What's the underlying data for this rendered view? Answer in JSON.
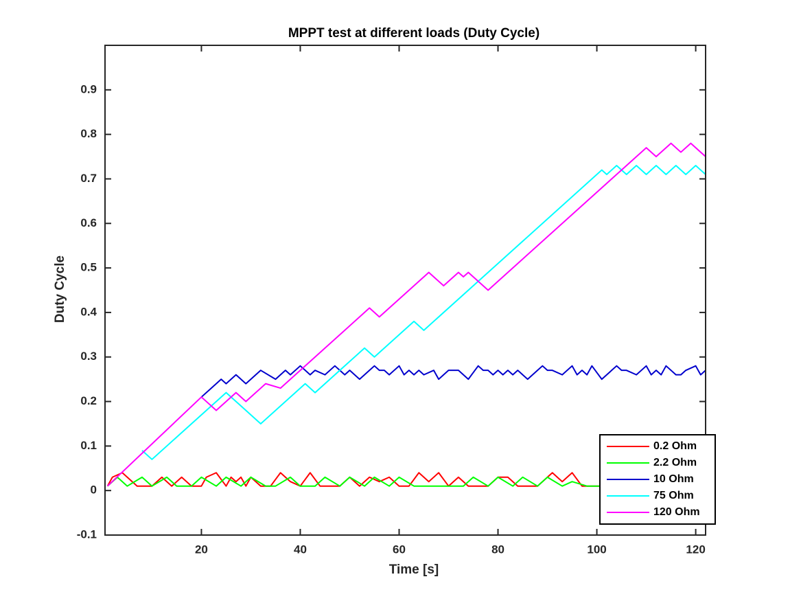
{
  "chart_data": {
    "type": "line",
    "title": "MPPT test at different loads (Duty Cycle)",
    "x_label": "Time [s]",
    "y_label": "Duty Cycle",
    "xlim": [
      0.5,
      122
    ],
    "ylim": [
      -0.1,
      1
    ],
    "xticks": [
      20,
      40,
      60,
      80,
      100,
      120
    ],
    "yticks": [
      -0.1,
      0,
      0.1,
      0.2,
      0.3,
      0.4,
      0.5,
      0.6,
      0.7,
      0.8,
      0.9
    ],
    "grid": false,
    "legend": "southeast",
    "series": [
      {
        "name": "0.2 Ohm",
        "color": "#ff0000",
        "x": [
          1,
          2,
          4,
          7,
          10,
          12,
          14,
          16,
          18,
          20,
          21,
          23,
          25,
          26,
          27,
          28,
          29,
          30,
          32,
          34,
          36,
          38,
          40,
          42,
          44,
          46,
          48,
          50,
          52,
          54,
          56,
          58,
          60,
          62,
          64,
          66,
          68,
          70,
          72,
          74,
          76,
          78,
          80,
          82,
          84,
          86,
          88,
          90,
          91,
          93,
          95,
          97,
          99,
          101,
          103,
          105,
          107,
          109,
          111,
          113,
          115,
          117,
          119,
          121,
          122
        ],
        "values": [
          0.01,
          0.03,
          0.04,
          0.01,
          0.01,
          0.03,
          0.01,
          0.03,
          0.01,
          0.01,
          0.03,
          0.04,
          0.01,
          0.03,
          0.02,
          0.03,
          0.01,
          0.03,
          0.01,
          0.01,
          0.04,
          0.02,
          0.01,
          0.04,
          0.01,
          0.01,
          0.01,
          0.03,
          0.01,
          0.03,
          0.02,
          0.03,
          0.01,
          0.01,
          0.04,
          0.02,
          0.04,
          0.01,
          0.03,
          0.01,
          0.01,
          0.01,
          0.03,
          0.03,
          0.01,
          0.01,
          0.01,
          0.03,
          0.04,
          0.02,
          0.04,
          0.01,
          0.01,
          0.01,
          0.01,
          0.01,
          0.01,
          0.01,
          0.01,
          0.01,
          0.01,
          0.01,
          0.01,
          0.04,
          0.03
        ]
      },
      {
        "name": "2.2 Ohm",
        "color": "#00ff00",
        "x": [
          1,
          3,
          5,
          8,
          10,
          13,
          15,
          18,
          20,
          23,
          25,
          28,
          30,
          33,
          35,
          38,
          40,
          43,
          45,
          48,
          50,
          53,
          55,
          58,
          60,
          63,
          65,
          68,
          70,
          73,
          75,
          78,
          80,
          83,
          85,
          88,
          90,
          93,
          95,
          98,
          100,
          103,
          105,
          108,
          110,
          113,
          115,
          118,
          120,
          122
        ],
        "values": [
          0.01,
          0.03,
          0.01,
          0.03,
          0.01,
          0.03,
          0.01,
          0.01,
          0.03,
          0.01,
          0.03,
          0.01,
          0.03,
          0.01,
          0.01,
          0.03,
          0.01,
          0.01,
          0.03,
          0.01,
          0.03,
          0.01,
          0.03,
          0.01,
          0.03,
          0.01,
          0.01,
          0.01,
          0.01,
          0.01,
          0.03,
          0.01,
          0.03,
          0.01,
          0.03,
          0.01,
          0.03,
          0.01,
          0.02,
          0.01,
          0.01,
          0.01,
          0.01,
          0.01,
          0.01,
          0.01,
          0.01,
          0.01,
          0.03,
          0.01
        ]
      },
      {
        "name": "10 Ohm",
        "color": "#0000cc",
        "x": [
          20,
          22,
          24,
          25,
          27,
          29,
          32,
          35,
          37,
          38,
          40,
          41,
          42,
          43,
          45,
          47,
          48,
          49,
          50,
          51,
          52,
          54,
          55,
          56,
          57,
          58,
          60,
          61,
          62,
          63,
          64,
          65,
          67,
          68,
          70,
          72,
          74,
          76,
          77,
          78,
          79,
          80,
          81,
          82,
          83,
          84,
          86,
          88,
          89,
          90,
          91,
          93,
          95,
          96,
          97,
          98,
          99,
          101,
          103,
          104,
          105,
          106,
          108,
          110,
          111,
          112,
          113,
          114,
          116,
          117,
          118,
          120,
          121,
          122
        ],
        "values": [
          0.21,
          0.23,
          0.25,
          0.24,
          0.26,
          0.24,
          0.27,
          0.25,
          0.27,
          0.26,
          0.28,
          0.27,
          0.26,
          0.27,
          0.26,
          0.28,
          0.27,
          0.26,
          0.27,
          0.26,
          0.25,
          0.27,
          0.28,
          0.27,
          0.27,
          0.26,
          0.28,
          0.26,
          0.27,
          0.26,
          0.27,
          0.26,
          0.27,
          0.25,
          0.27,
          0.27,
          0.25,
          0.28,
          0.27,
          0.27,
          0.26,
          0.27,
          0.26,
          0.27,
          0.26,
          0.27,
          0.25,
          0.27,
          0.28,
          0.27,
          0.27,
          0.26,
          0.28,
          0.26,
          0.27,
          0.26,
          0.28,
          0.25,
          0.27,
          0.28,
          0.27,
          0.27,
          0.26,
          0.28,
          0.26,
          0.27,
          0.26,
          0.28,
          0.26,
          0.26,
          0.27,
          0.28,
          0.26,
          0.27
        ]
      },
      {
        "name": "75 Ohm",
        "color": "#00ffff",
        "x": [
          8,
          10,
          25,
          28,
          32,
          41,
          43,
          53,
          55,
          63,
          65,
          101,
          102,
          104,
          106,
          108,
          110,
          112,
          114,
          116,
          118,
          120,
          122
        ],
        "values": [
          0.09,
          0.07,
          0.22,
          0.19,
          0.15,
          0.24,
          0.22,
          0.32,
          0.3,
          0.38,
          0.36,
          0.72,
          0.71,
          0.73,
          0.71,
          0.73,
          0.71,
          0.73,
          0.71,
          0.73,
          0.71,
          0.73,
          0.71
        ]
      },
      {
        "name": "120 Ohm",
        "color": "#ff00ff",
        "x": [
          1,
          20,
          23,
          27,
          29,
          33,
          36,
          54,
          56,
          66,
          69,
          72,
          73,
          74,
          78,
          110,
          112,
          115,
          117,
          119,
          122
        ],
        "values": [
          0.01,
          0.21,
          0.18,
          0.22,
          0.2,
          0.24,
          0.23,
          0.41,
          0.39,
          0.49,
          0.46,
          0.49,
          0.48,
          0.49,
          0.45,
          0.77,
          0.75,
          0.78,
          0.76,
          0.78,
          0.75
        ]
      }
    ]
  }
}
